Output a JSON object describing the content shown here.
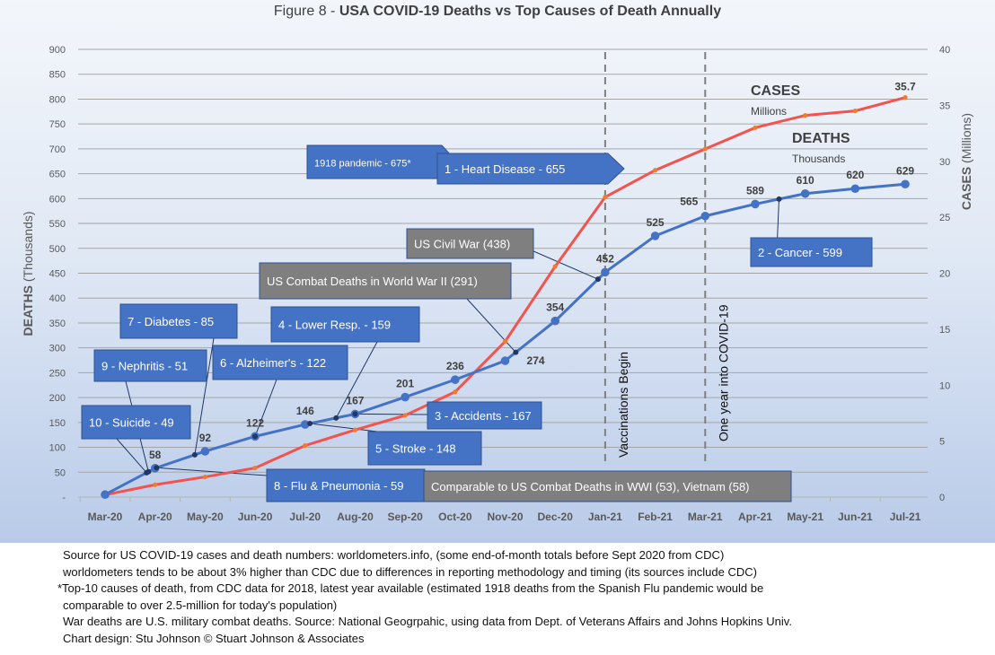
{
  "title": {
    "prefix": "Figure 8 - ",
    "main": "USA COVID-19 Deaths vs Top Causes of Death Annually"
  },
  "chart_data": {
    "type": "line",
    "title": "Figure 8 - USA COVID-19 Deaths vs Top Causes of Death Annually",
    "categories": [
      "Mar-20",
      "Apr-20",
      "May-20",
      "Jun-20",
      "Jul-20",
      "Aug-20",
      "Sep-20",
      "Oct-20",
      "Nov-20",
      "Dec-20",
      "Jan-21",
      "Feb-21",
      "Mar-21",
      "Apr-21",
      "May-21",
      "Jun-21",
      "Jul-21"
    ],
    "series": [
      {
        "name": "Deaths (Thousands)",
        "axis": "left",
        "color": "#4472C4",
        "values": [
          5,
          58,
          92,
          122,
          146,
          167,
          201,
          236,
          274,
          354,
          452,
          525,
          565,
          589,
          610,
          620,
          629
        ],
        "labels": [
          "",
          "58",
          "92",
          "122",
          "146",
          "167",
          "201",
          "236",
          "274",
          "354",
          "452",
          "525",
          "565",
          "589",
          "610",
          "620",
          "629"
        ]
      },
      {
        "name": "Cases (Millions)",
        "axis": "right",
        "color": "#F4524D",
        "marker_color": "#ED7D31",
        "values": [
          0.2,
          1.1,
          1.8,
          2.6,
          4.6,
          6.0,
          7.3,
          9.4,
          13.9,
          20.6,
          26.8,
          29.2,
          31.1,
          33.0,
          34.1,
          34.5,
          35.7
        ],
        "last_label": "35.7"
      }
    ],
    "ylabel_bold": "DEATHS",
    "ylabel_rest": " (Thousands)",
    "y2label_bold": "CASES",
    "y2label_rest": " (Millions)",
    "ylim": [
      0,
      900
    ],
    "y2lim": [
      0,
      40
    ],
    "yticks": [
      "-",
      "50",
      "100",
      "150",
      "200",
      "250",
      "300",
      "350",
      "400",
      "450",
      "500",
      "550",
      "600",
      "650",
      "700",
      "750",
      "800",
      "850",
      "900"
    ],
    "y2ticks": [
      "0",
      "5",
      "10",
      "15",
      "20",
      "25",
      "30",
      "35",
      "40"
    ],
    "grid": true,
    "series_labels": {
      "cases": "CASES",
      "cases_unit": "Millions",
      "deaths": "DEATHS",
      "deaths_unit": "Thousands"
    },
    "vlines": [
      {
        "category": "Jan-21",
        "label": "Vaccinations Begin"
      },
      {
        "category": "Mar-21",
        "label": "One year into COVID-19"
      }
    ],
    "annotations": [
      {
        "text": "1918 pandemic - 675*",
        "value": 675,
        "kind": "pandemic"
      },
      {
        "text": "1 - Heart Disease - 655",
        "value": 655,
        "kind": "cause"
      },
      {
        "text": "2 - Cancer - 599",
        "value": 599,
        "kind": "cause"
      },
      {
        "text": "3 - Accidents - 167",
        "value": 167,
        "kind": "cause"
      },
      {
        "text": "4 - Lower Resp.  - 159",
        "value": 159,
        "kind": "cause"
      },
      {
        "text": "5 -  Stroke - 148",
        "value": 148,
        "kind": "cause"
      },
      {
        "text": "6 - Alzheimer's - 122",
        "value": 122,
        "kind": "cause"
      },
      {
        "text": "7 - Diabetes - 85",
        "value": 85,
        "kind": "cause"
      },
      {
        "text": "8 - Flu & Pneumonia - 59",
        "value": 59,
        "kind": "cause"
      },
      {
        "text": "9 - Nephritis - 51",
        "value": 51,
        "kind": "cause"
      },
      {
        "text": "10 - Suicide - 49",
        "value": 49,
        "kind": "cause"
      },
      {
        "text": "US Civil War (438)",
        "value": 438,
        "kind": "war"
      },
      {
        "text": "US Combat Deaths in World War II (291)",
        "value": 291,
        "kind": "war"
      },
      {
        "text": "Comparable to US Combat Deaths in WWI (53), Vietnam (58)",
        "value": 58,
        "kind": "war"
      }
    ]
  },
  "colors": {
    "deaths": "#4472C4",
    "cases": "#F4524D",
    "cases_marker": "#ED7D31",
    "cause_box": "#4472C4",
    "war_box": "#7F7F7F"
  },
  "footer": [
    "Source for US COVID-19 cases and death numbers: worldometers.info, (some end-of-month totals before Sept 2020 from CDC)",
    "worldometers tends to be about 3% higher than CDC due to differences in reporting methodology and timing (its sources include CDC)",
    "*Top-10 causes of death, from CDC data for 2018, latest year available  (estimated 1918 deaths from the Spanish Flu pandemic would be",
    "comparable to over 2.5-million for today's population)",
    "War deaths are U.S. military combat deaths.  Source: National Geogrpahic, using data from Dept. of Veterans Affairs and Johns Hopkins Univ.",
    "Chart design: Stu Johnson © Stuart Johnson & Associates"
  ]
}
